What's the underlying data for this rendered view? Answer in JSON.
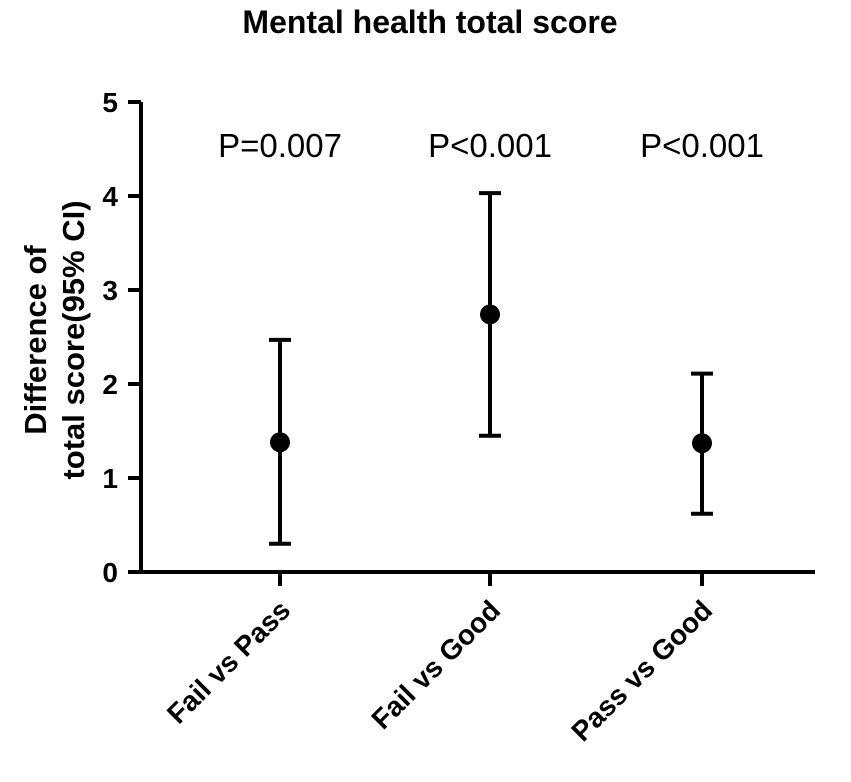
{
  "chart_data": {
    "type": "scatter",
    "title": "Mental health total score",
    "ylabel_lines": [
      "Difference of",
      "total score(95% CI)"
    ],
    "xlabel": "",
    "ylim": [
      0,
      5
    ],
    "yticks": [
      "0",
      "1",
      "2",
      "3",
      "4",
      "5"
    ],
    "categories": [
      "Fail vs Pass",
      "Fail vs Good",
      "Pass vs Good"
    ],
    "values": [
      1.38,
      2.74,
      1.37
    ],
    "ci_lower": [
      0.3,
      1.45,
      0.62
    ],
    "ci_upper": [
      2.47,
      4.03,
      2.11
    ],
    "annotations": [
      "P=0.007",
      "P<0.001",
      "P<0.001"
    ],
    "grid": false,
    "colors": {
      "marker": "#000000",
      "axis": "#000000"
    }
  }
}
